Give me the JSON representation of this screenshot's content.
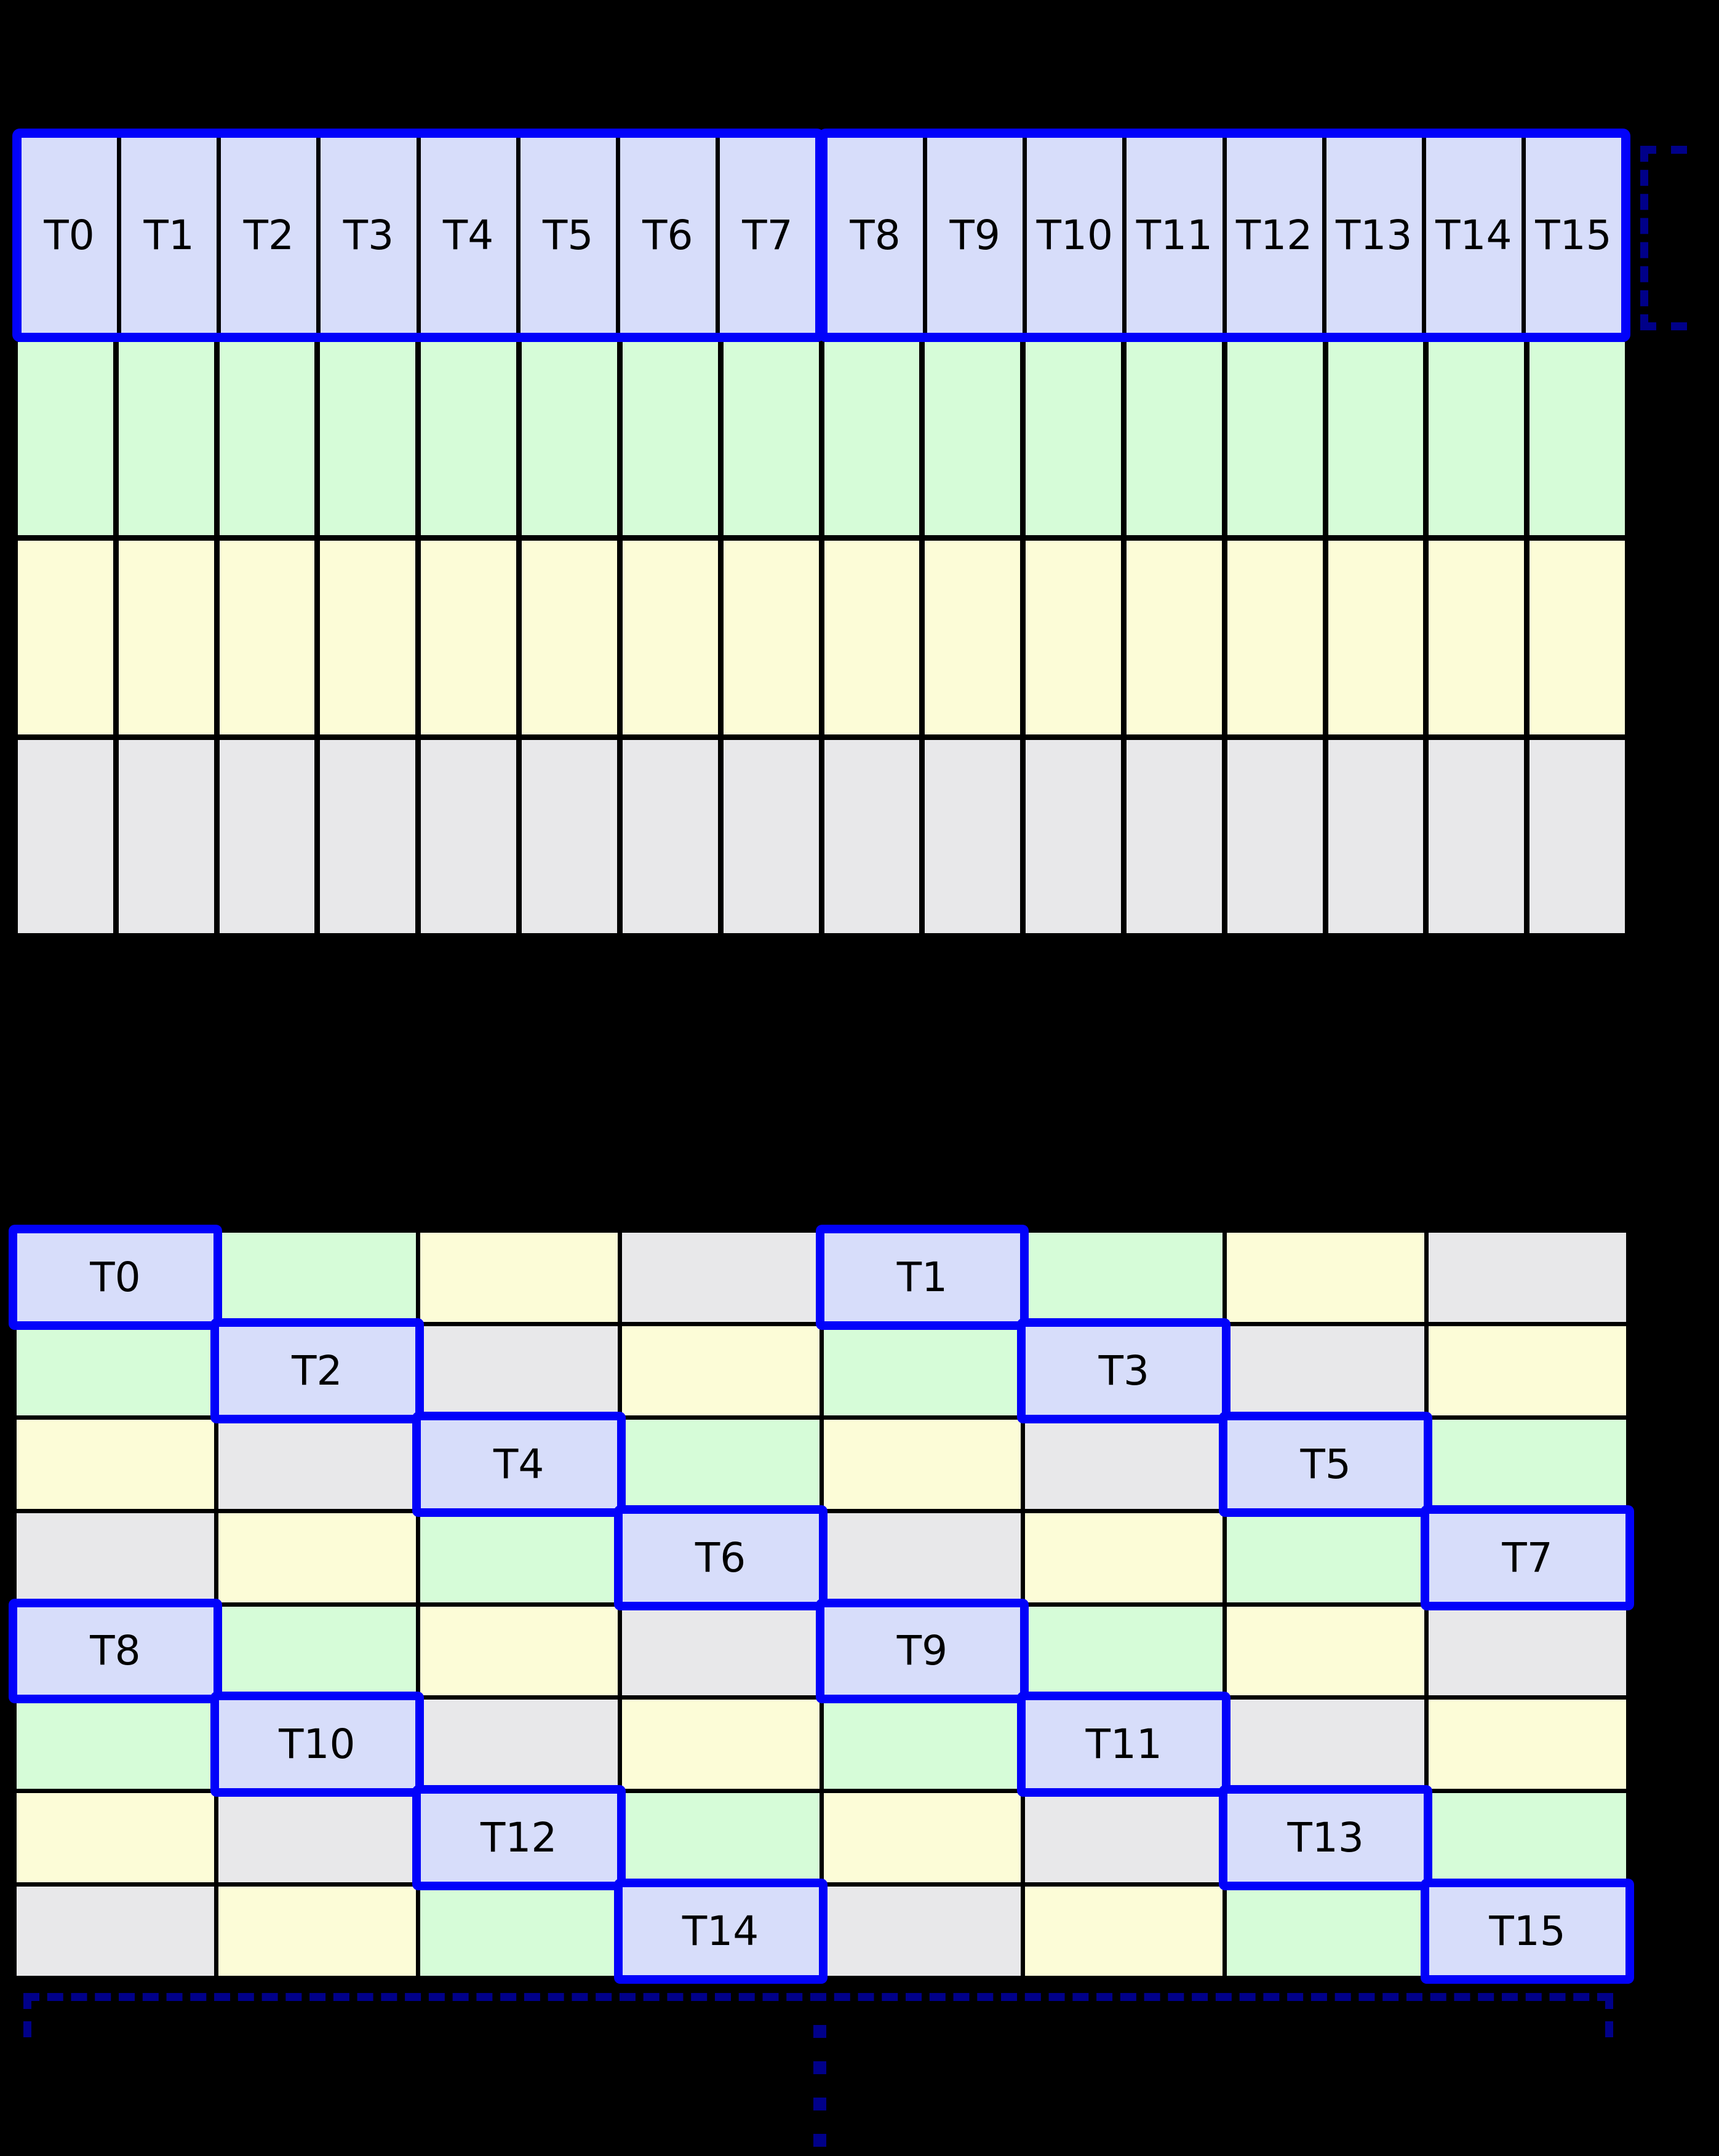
{
  "colors": {
    "background": "#000000",
    "cell_border": "#000000",
    "thread_box_border": "#0202fa",
    "bracket": "#000089",
    "lavender": "#d7ddfa",
    "green": "#d6fcd8",
    "yellow": "#fcfcd7",
    "gray": "#e8e8ea"
  },
  "top_grid": {
    "thread_labels": [
      "T0",
      "T1",
      "T2",
      "T3",
      "T4",
      "T5",
      "T6",
      "T7",
      "T8",
      "T9",
      "T10",
      "T11",
      "T12",
      "T13",
      "T14",
      "T15"
    ],
    "memory_row_colors": [
      "green",
      "yellow",
      "gray"
    ],
    "columns": 16
  },
  "bottom_grid": {
    "color_rows": [
      [
        "lavender",
        "green",
        "yellow",
        "gray",
        "lavender",
        "green",
        "yellow",
        "gray"
      ],
      [
        "green",
        "lavender",
        "gray",
        "yellow",
        "green",
        "lavender",
        "gray",
        "yellow"
      ],
      [
        "yellow",
        "gray",
        "lavender",
        "green",
        "yellow",
        "gray",
        "lavender",
        "green"
      ],
      [
        "gray",
        "yellow",
        "green",
        "lavender",
        "gray",
        "yellow",
        "green",
        "lavender"
      ],
      [
        "lavender",
        "green",
        "yellow",
        "gray",
        "lavender",
        "green",
        "yellow",
        "gray"
      ],
      [
        "green",
        "lavender",
        "gray",
        "yellow",
        "green",
        "lavender",
        "gray",
        "yellow"
      ],
      [
        "yellow",
        "gray",
        "lavender",
        "green",
        "yellow",
        "gray",
        "lavender",
        "green"
      ],
      [
        "gray",
        "yellow",
        "green",
        "lavender",
        "gray",
        "yellow",
        "green",
        "lavender"
      ]
    ],
    "threads": [
      {
        "label": "T0",
        "row": 0,
        "col": 0
      },
      {
        "label": "T1",
        "row": 0,
        "col": 4
      },
      {
        "label": "T2",
        "row": 1,
        "col": 1
      },
      {
        "label": "T3",
        "row": 1,
        "col": 5
      },
      {
        "label": "T4",
        "row": 2,
        "col": 2
      },
      {
        "label": "T5",
        "row": 2,
        "col": 6
      },
      {
        "label": "T6",
        "row": 3,
        "col": 3
      },
      {
        "label": "T7",
        "row": 3,
        "col": 7
      },
      {
        "label": "T8",
        "row": 4,
        "col": 0
      },
      {
        "label": "T9",
        "row": 4,
        "col": 4
      },
      {
        "label": "T10",
        "row": 5,
        "col": 1
      },
      {
        "label": "T11",
        "row": 5,
        "col": 5
      },
      {
        "label": "T12",
        "row": 6,
        "col": 2
      },
      {
        "label": "T13",
        "row": 6,
        "col": 6
      },
      {
        "label": "T14",
        "row": 7,
        "col": 3
      },
      {
        "label": "T15",
        "row": 7,
        "col": 7
      }
    ]
  },
  "annotations": {
    "right_bracket_dashed": true,
    "bottom_bracket_dashed": true,
    "ellipsis_dot_count": 4
  }
}
